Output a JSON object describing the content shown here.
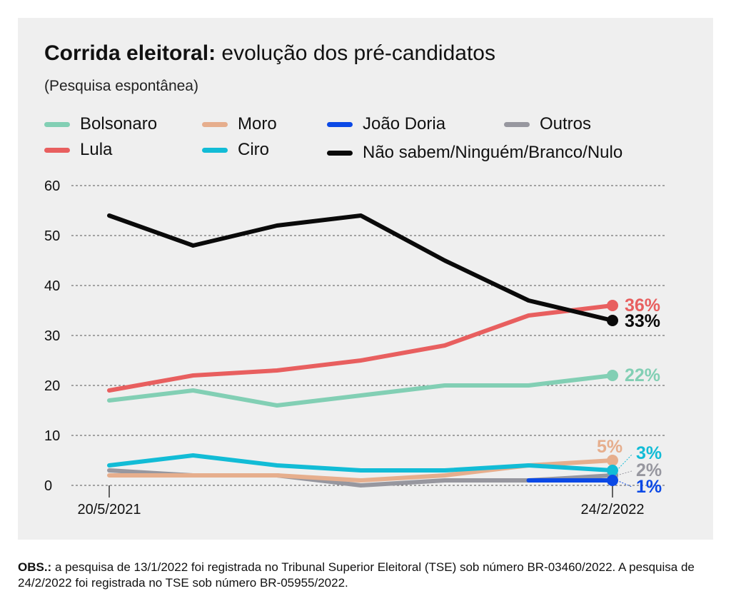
{
  "header": {
    "title_bold": "Corrida eleitoral:",
    "title_rest": " evolução dos pré-candidatos",
    "subtitle": "(Pesquisa espontânea)"
  },
  "legend": [
    {
      "label": "Bolsonaro",
      "color": "#82cfb4"
    },
    {
      "label": "Moro",
      "color": "#e6ae8d"
    },
    {
      "label": "João Doria",
      "color": "#0b49e6"
    },
    {
      "label": "Outros",
      "color": "#97979f"
    },
    {
      "label": "Lula",
      "color": "#e85f5f"
    },
    {
      "label": "Ciro",
      "color": "#12bcd6"
    },
    {
      "label": "Não sabem/Ninguém/Branco/Nulo",
      "color": "#0a0a0a"
    }
  ],
  "chart_data": {
    "type": "line",
    "title": "Corrida eleitoral: evolução dos pré-candidatos",
    "subtitle": "(Pesquisa espontânea)",
    "x_labels": [
      "20/5/2021",
      "24/2/2022"
    ],
    "ylim": [
      0,
      60
    ],
    "yticks": [
      0,
      10,
      20,
      30,
      40,
      50,
      60
    ],
    "grid": true,
    "series": [
      {
        "name": "Outros",
        "color": "#97979f",
        "values": [
          3,
          2,
          2,
          0,
          1,
          1,
          2
        ],
        "end_label": "2%"
      },
      {
        "name": "Moro",
        "color": "#e6ae8d",
        "values": [
          2,
          2,
          2,
          1,
          2,
          4,
          5
        ],
        "end_label": "5%"
      },
      {
        "name": "Ciro",
        "color": "#12bcd6",
        "values": [
          4,
          6,
          4,
          3,
          3,
          4,
          3
        ],
        "end_label": "3%"
      },
      {
        "name": "João Doria",
        "color": "#0b49e6",
        "values": [
          null,
          null,
          null,
          null,
          null,
          1,
          1
        ],
        "end_label": "1%"
      },
      {
        "name": "Bolsonaro",
        "color": "#82cfb4",
        "values": [
          17,
          19,
          16,
          18,
          20,
          20,
          22
        ],
        "end_label": "22%"
      },
      {
        "name": "Lula",
        "color": "#e85f5f",
        "values": [
          19,
          22,
          23,
          25,
          28,
          34,
          36
        ],
        "end_label": "36%"
      },
      {
        "name": "Não sabem/Ninguém/Branco/Nulo",
        "color": "#0a0a0a",
        "values": [
          54,
          48,
          52,
          54,
          45,
          37,
          33
        ],
        "end_label": "33%"
      }
    ]
  },
  "footnote": {
    "label": "OBS.:",
    "text": " a pesquisa de 13/1/2022 foi registrada no Tribunal Superior Eleitoral (TSE) sob número BR-03460/2022. A pesquisa de 24/2/2022 foi registrada no TSE sob número BR-05955/2022."
  }
}
